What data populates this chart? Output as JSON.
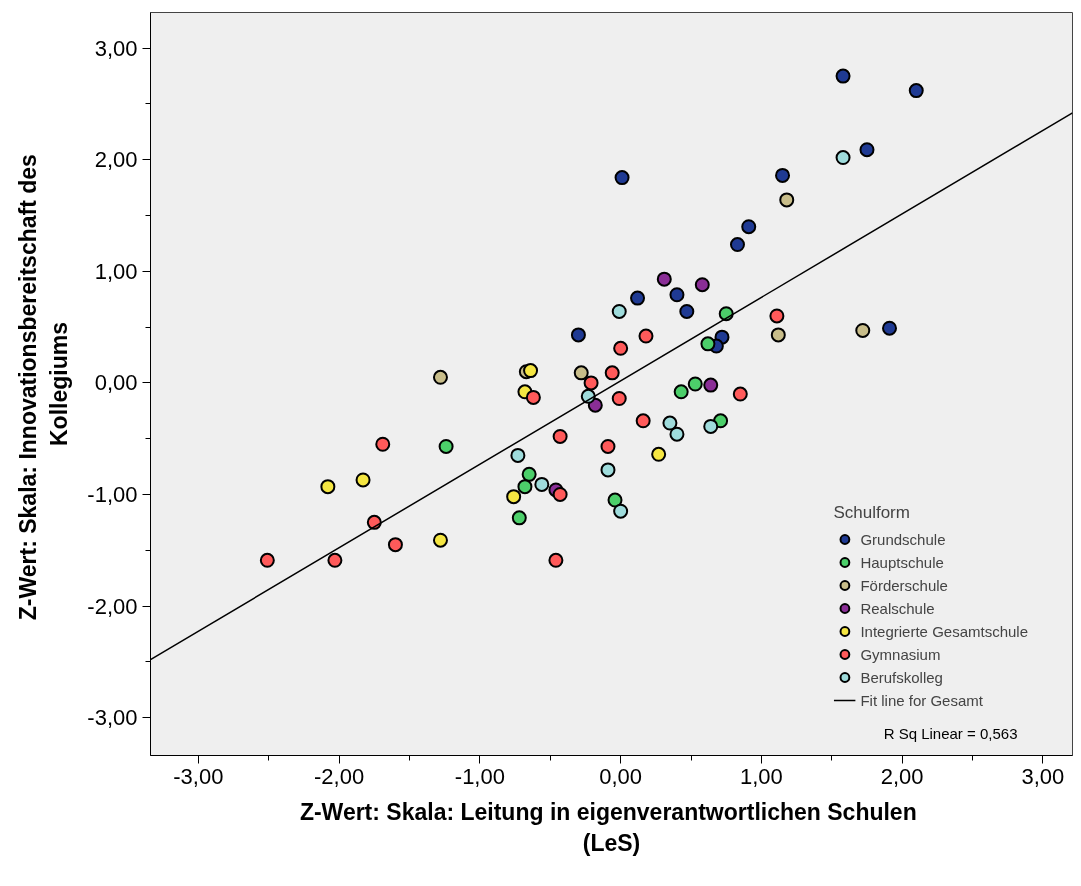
{
  "chart_data": {
    "type": "scatter",
    "xlabel": "Z-Wert:  Skala: Leitung in eigenverantwortlichen Schulen (LeS)",
    "ylabel": "Z-Wert:  Skala: Innovationsbereitschaft des Kollegiums",
    "legend_title": "Schulform",
    "annotations": [
      "R Sq Linear = 0,563"
    ],
    "xlim": [
      -3.34,
      3.21
    ],
    "ylim": [
      -3.34,
      3.32
    ],
    "xticks": [
      {
        "value": -3,
        "label": "-3,00"
      },
      {
        "value": -2,
        "label": "-2,00"
      },
      {
        "value": -1,
        "label": "-1,00"
      },
      {
        "value": 0,
        "label": "0,00"
      },
      {
        "value": 1,
        "label": "1,00"
      },
      {
        "value": 2,
        "label": "2,00"
      },
      {
        "value": 3,
        "label": "3,00"
      }
    ],
    "yticks": [
      {
        "value": -3,
        "label": "-3,00"
      },
      {
        "value": -2,
        "label": "-2,00"
      },
      {
        "value": -1,
        "label": "-1,00"
      },
      {
        "value": 0,
        "label": "0,00"
      },
      {
        "value": 1,
        "label": "1,00"
      },
      {
        "value": 2,
        "label": "2,00"
      },
      {
        "value": 3,
        "label": "3,00"
      }
    ],
    "grid": false,
    "legend": "bottom right",
    "series": [
      {
        "name": "Grundschule",
        "color": "#1f3a93",
        "marker": "circle",
        "x": [
          1.58,
          2.1,
          1.75,
          1.15,
          0.01,
          0.91,
          0.83,
          0.12,
          0.4,
          0.47,
          -0.3,
          1.91,
          0.72,
          0.68
        ],
        "values": [
          2.75,
          2.62,
          2.09,
          1.86,
          1.84,
          1.4,
          1.24,
          0.76,
          0.79,
          0.64,
          0.43,
          0.49,
          0.41,
          0.33
        ]
      },
      {
        "name": "Hauptschule",
        "color": "#4ccf6a",
        "marker": "circle",
        "x": [
          0.75,
          0.62,
          0.53,
          0.43,
          0.71,
          -1.24,
          -0.65,
          -0.68,
          -0.72,
          -0.04
        ],
        "values": [
          0.62,
          0.35,
          -0.01,
          -0.08,
          -0.34,
          -0.57,
          -0.82,
          -0.93,
          -1.21,
          -1.05
        ]
      },
      {
        "name": "Förderschule",
        "color": "#c8bd8a",
        "marker": "circle",
        "x": [
          1.18,
          1.12,
          1.72,
          -0.28,
          -1.28,
          -0.67
        ],
        "values": [
          1.64,
          0.43,
          0.47,
          0.09,
          0.05,
          0.1
        ]
      },
      {
        "name": "Realschule",
        "color": "#8a2e96",
        "marker": "circle",
        "x": [
          0.31,
          0.58,
          0.64,
          -0.18,
          -0.46
        ],
        "values": [
          0.93,
          0.88,
          -0.02,
          -0.2,
          -0.96
        ]
      },
      {
        "name": "Integrierte Gesamtschule",
        "color": "#f5e642",
        "marker": "circle",
        "x": [
          -0.64,
          -0.68,
          -1.83,
          -2.08,
          -0.76,
          -1.28,
          0.27
        ],
        "values": [
          0.11,
          -0.08,
          -0.87,
          -0.93,
          -1.02,
          -1.41,
          -0.64
        ]
      },
      {
        "name": "Gymnasium",
        "color": "#ff5a5a",
        "marker": "circle",
        "x": [
          -1.69,
          -1.75,
          -2.51,
          -2.03,
          -1.6,
          -0.46,
          -0.43,
          -0.43,
          -0.62,
          -0.21,
          -0.06,
          0.0,
          -0.01,
          -0.09,
          0.18,
          0.16,
          1.11,
          0.85
        ],
        "values": [
          -0.55,
          -1.25,
          -1.59,
          -1.59,
          -1.45,
          -1.59,
          -1.0,
          -0.48,
          -0.13,
          0.0,
          0.09,
          0.31,
          -0.14,
          -0.57,
          0.42,
          -0.34,
          0.6,
          -0.1
        ]
      },
      {
        "name": "Berufskolleg",
        "color": "#9fdcdc",
        "marker": "circle",
        "x": [
          1.58,
          -0.01,
          -0.23,
          0.35,
          0.4,
          0.64,
          -0.73,
          -0.56,
          -0.09,
          0.0
        ],
        "values": [
          2.02,
          0.64,
          -0.12,
          -0.36,
          -0.46,
          -0.39,
          -0.65,
          -0.91,
          -0.78,
          -1.15
        ]
      },
      {
        "name": "Fit line for Gesamt",
        "type": "line",
        "color": "#000000",
        "x": [
          -3.34,
          3.21
        ],
        "values": [
          -2.48,
          2.42
        ]
      }
    ]
  }
}
